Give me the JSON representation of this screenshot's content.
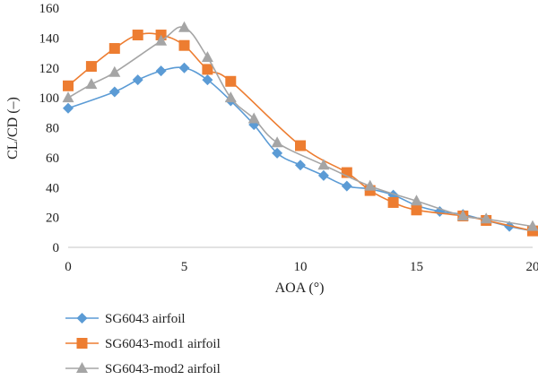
{
  "chart_data": {
    "type": "line",
    "title": "",
    "xlabel": "AOA (°)",
    "ylabel": "CL/CD (–)",
    "xlim": [
      0,
      20
    ],
    "ylim": [
      0,
      160
    ],
    "x_ticks": [
      0,
      5,
      10,
      15,
      20
    ],
    "y_ticks": [
      0,
      20,
      40,
      60,
      80,
      100,
      120,
      140,
      160
    ],
    "grid": false,
    "legend_position": "bottom-left",
    "series": [
      {
        "name": "SG6043 airfoil",
        "color": "#5B9BD5",
        "marker": "diamond",
        "x": [
          0,
          2,
          3,
          4,
          5,
          6,
          7,
          8,
          9,
          10,
          11,
          12,
          13,
          14,
          15,
          16,
          17,
          18,
          19,
          20
        ],
        "y": [
          93,
          104,
          112,
          118,
          120,
          112,
          98,
          82,
          63,
          55,
          48,
          41,
          39,
          35,
          28,
          24,
          22,
          18,
          14,
          11
        ]
      },
      {
        "name": "SG6043-mod1 airfoil",
        "color": "#ED7D31",
        "marker": "square",
        "x": [
          0,
          1,
          2,
          3,
          4,
          5,
          6,
          7,
          10,
          12,
          13,
          14,
          15,
          17,
          18,
          20
        ],
        "y": [
          108,
          121,
          133,
          142,
          142,
          135,
          119,
          111,
          68,
          50,
          38,
          30,
          25,
          21,
          18,
          11
        ]
      },
      {
        "name": "SG6043-mod2 airfoil",
        "color": "#A5A5A5",
        "marker": "triangle",
        "x": [
          0,
          1,
          2,
          4,
          5,
          6,
          7,
          8,
          9,
          11,
          13,
          15,
          17,
          18,
          20
        ],
        "y": [
          100,
          109,
          117,
          138,
          147,
          127,
          100,
          86,
          70,
          55,
          41,
          31,
          21,
          19,
          14
        ]
      }
    ]
  }
}
